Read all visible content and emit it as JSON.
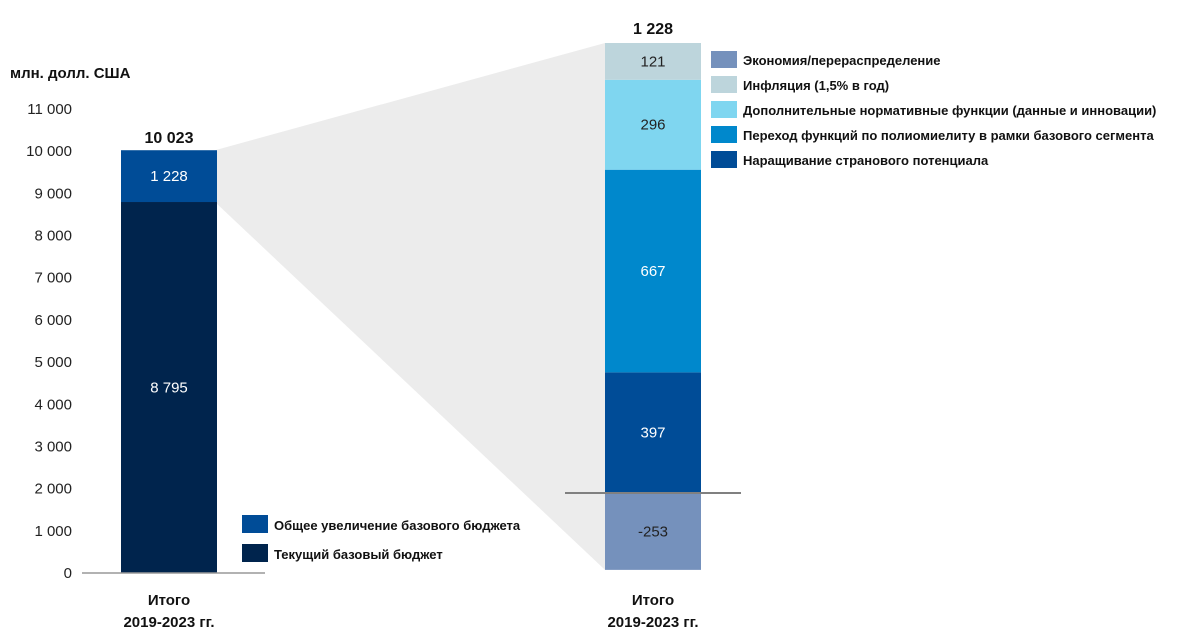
{
  "chart_data": {
    "type": "bar",
    "stacked": true,
    "ylabel": "млн. долл. США",
    "ylim": [
      0,
      11000
    ],
    "yticks": [
      "0",
      "1 000",
      "2 000",
      "3 000",
      "4 000",
      "5 000",
      "6 000",
      "7 000",
      "8 000",
      "9 000",
      "10 000",
      "11 000"
    ],
    "grid": false,
    "bars": [
      {
        "category": "Итого\n2019-2023 гг.",
        "category_lines": [
          "Итого",
          "2019-2023 гг."
        ],
        "total_label": "10 023",
        "segments": [
          {
            "name": "Текущий базовый бюджет",
            "value": 8795,
            "label": "8 795",
            "color": "#00244d"
          },
          {
            "name": "Общее увеличение базового бюджета",
            "value": 1228,
            "label": "1 228",
            "color": "#004c97"
          }
        ],
        "legend": [
          {
            "name": "Общее увеличение базового бюджета",
            "color": "#004c97"
          },
          {
            "name": "Текущий базовый бюджет",
            "color": "#00244d"
          }
        ]
      },
      {
        "category": "Итого\n2019-2023 гг.",
        "category_lines": [
          "Итого",
          "2019-2023 гг."
        ],
        "total_label": "1 228",
        "note": "breakdown of the 1 228 increase, drawn on its own (zoomed) scale",
        "segments": [
          {
            "name": "Экономия/перераспределение",
            "value": -253,
            "label": "-253",
            "color": "#7591bc"
          },
          {
            "name": "Наращивание странового потенциала",
            "value": 397,
            "label": "397",
            "color": "#004c97"
          },
          {
            "name": "Переход функций по полиомиелиту в рамки базового сегмента",
            "value": 667,
            "label": "667",
            "color": "#0088cc"
          },
          {
            "name": "Дополнительные нормативные функции (данные и инновации)",
            "value": 296,
            "label": "296",
            "color": "#7fd6f0"
          },
          {
            "name": "Инфляция (1,5% в год)",
            "value": 121,
            "label": "121",
            "color": "#bdd5dc"
          }
        ],
        "legend": [
          {
            "name": "Экономия/перераспределение",
            "color": "#7591bc"
          },
          {
            "name": "Инфляция (1,5% в год)",
            "color": "#bdd5dc"
          },
          {
            "name": "Дополнительные нормативные функции (данные и инновации)",
            "color": "#7fd6f0"
          },
          {
            "name": "Переход функций по полиомиелиту в рамки базового сегмента",
            "color": "#0088cc"
          },
          {
            "name": "Наращивание странового потенциала",
            "color": "#004c97"
          }
        ]
      }
    ]
  }
}
